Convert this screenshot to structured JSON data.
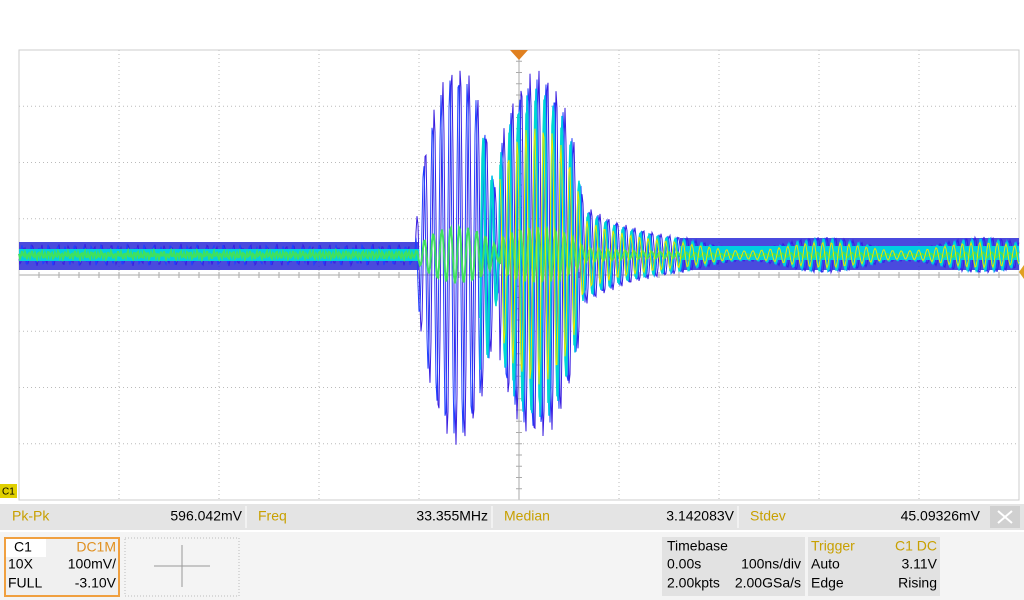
{
  "screen": {
    "channel_marker": "C1",
    "measurements": [
      {
        "label": "Pk-Pk",
        "value": "596.042mV"
      },
      {
        "label": "Freq",
        "value": "33.355MHz"
      },
      {
        "label": "Median",
        "value": "3.142083V"
      },
      {
        "label": "Stdev",
        "value": "45.09326mV"
      }
    ],
    "channel": {
      "name": "C1",
      "coupling": "DC1M",
      "probe": "10X",
      "scale": "100mV/",
      "bandwidth": "FULL",
      "offset": "-3.10V"
    },
    "timebase": {
      "title": "Timebase",
      "delay": "0.00s",
      "scale": "100ns/div",
      "points": "2.00kpts",
      "rate": "2.00GSa/s"
    },
    "trigger": {
      "title": "Trigger",
      "source": "C1 DC",
      "mode": "Auto",
      "level": "3.11V",
      "type": "Edge",
      "slope": "Rising"
    }
  }
}
